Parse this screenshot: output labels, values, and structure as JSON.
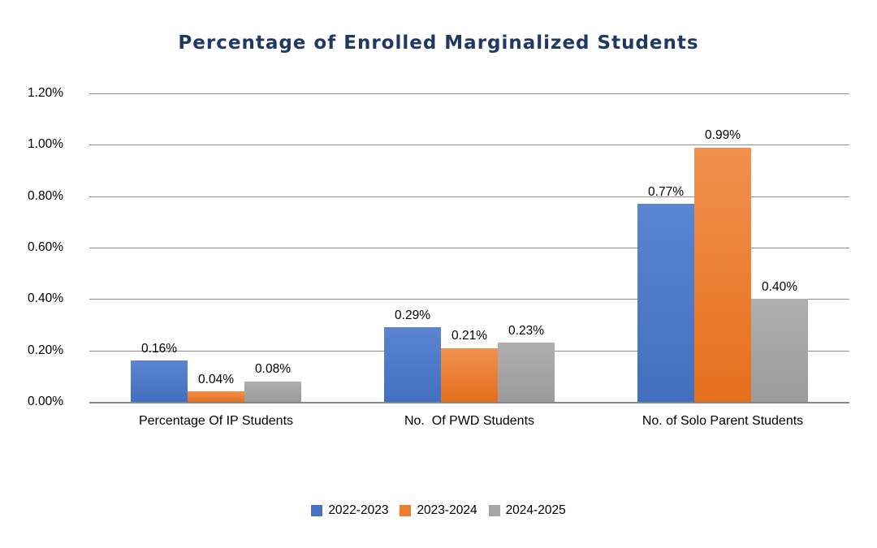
{
  "chart_data": {
    "type": "bar",
    "title": "Percentage of Enrolled Marginalized Students",
    "title_color": "#1F3864",
    "categories": [
      "Percentage Of IP Students",
      "No.  Of PWD Students",
      "No. of Solo Parent Students"
    ],
    "series": [
      {
        "name": "2022-2023",
        "color": "#4472C4",
        "gradient_top": "#5b84d1",
        "gradient_bottom": "#4170c0",
        "values": [
          0.16,
          0.29,
          0.77
        ],
        "value_labels": [
          "0.16%",
          "0.29%",
          "0.77%"
        ]
      },
      {
        "name": "2023-2024",
        "color": "#ED7D31",
        "gradient_top": "#f0914e",
        "gradient_bottom": "#e56f1c",
        "values": [
          0.04,
          0.21,
          0.99
        ],
        "value_labels": [
          "0.04%",
          "0.21%",
          "0.99%"
        ]
      },
      {
        "name": "2024-2025",
        "color": "#A5A5A5",
        "gradient_top": "#b0afaf",
        "gradient_bottom": "#9c9b9b",
        "values": [
          0.08,
          0.23,
          0.4
        ],
        "value_labels": [
          "0.08%",
          "0.23%",
          "0.40%"
        ]
      }
    ],
    "y_axis": {
      "min": 0,
      "max": 1.2,
      "tick_step": 0.2,
      "tick_labels": [
        "0.00%",
        "0.20%",
        "0.40%",
        "0.60%",
        "0.80%",
        "1.00%",
        "1.20%"
      ],
      "unit": "%"
    },
    "grid": true,
    "gridline_color": "#8f8f8f",
    "value_labels_shown": true,
    "legend_position": "bottom"
  },
  "legend": {
    "items": [
      {
        "label": "2022-2023",
        "color": "#4472C4"
      },
      {
        "label": "2023-2024",
        "color": "#ED7D31"
      },
      {
        "label": "2024-2025",
        "color": "#A5A5A5"
      }
    ]
  }
}
